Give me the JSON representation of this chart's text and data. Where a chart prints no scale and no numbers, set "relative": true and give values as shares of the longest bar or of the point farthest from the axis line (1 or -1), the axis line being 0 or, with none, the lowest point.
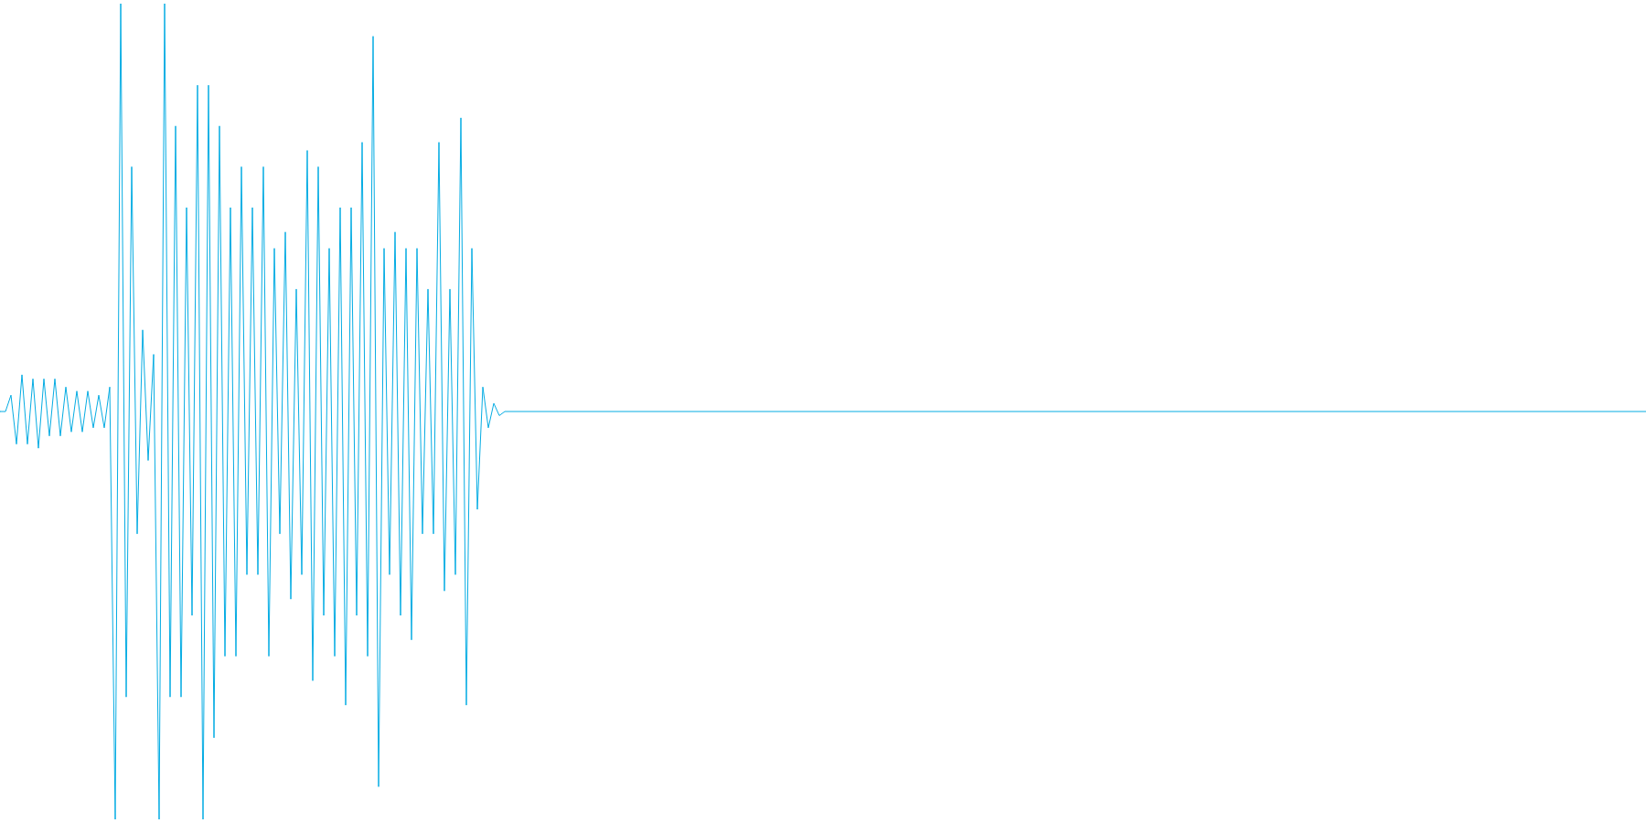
{
  "chart_data": {
    "type": "line",
    "relative": true,
    "categories": [
      null,
      null,
      null,
      null,
      null,
      null,
      null,
      null,
      null,
      null,
      null,
      null,
      null,
      null,
      null,
      null,
      null,
      null,
      null,
      null,
      null,
      null,
      null,
      null,
      null,
      null,
      null,
      null,
      null,
      null,
      null,
      null,
      null,
      null,
      null,
      null,
      null,
      null,
      null,
      null,
      null,
      null,
      null,
      null,
      null,
      null,
      null,
      null,
      null,
      null,
      null,
      null,
      null,
      null,
      null,
      null,
      null,
      null,
      null,
      null,
      null,
      null,
      null,
      null,
      null,
      null,
      null,
      null,
      null,
      null,
      null,
      null,
      null,
      null,
      null,
      null,
      null,
      null,
      null,
      null,
      null,
      null,
      null,
      null,
      null,
      null,
      null,
      null,
      null,
      null,
      null,
      null,
      null,
      null,
      null,
      null,
      null,
      null,
      null,
      null,
      null,
      null,
      null,
      null,
      null,
      null,
      null,
      null,
      null,
      null,
      null,
      null,
      null,
      null,
      null,
      null,
      null,
      null,
      null,
      null,
      null,
      null,
      null,
      null,
      null,
      null,
      null,
      null,
      null,
      null,
      null,
      null,
      null,
      null,
      null,
      null,
      null,
      null,
      null,
      null,
      null,
      null,
      null,
      null,
      null,
      null,
      null,
      null,
      null,
      null,
      null,
      null,
      null,
      null,
      null,
      null,
      null,
      null,
      null,
      null,
      null,
      null,
      null,
      null,
      null,
      null,
      null,
      null,
      null,
      null,
      null,
      null,
      null,
      null,
      null,
      null,
      null,
      null,
      null,
      null,
      null,
      null,
      null,
      null,
      null,
      null,
      null,
      null,
      null,
      null,
      null,
      null,
      null,
      null,
      null,
      null,
      null,
      null,
      null,
      null,
      null,
      null,
      null,
      null,
      null,
      null,
      null,
      null,
      null,
      null,
      null,
      null,
      null,
      null,
      null,
      null,
      null,
      null,
      null,
      null,
      null,
      null,
      null,
      null,
      null,
      null,
      null,
      null,
      null,
      null,
      null,
      null,
      null,
      null,
      null,
      null,
      null,
      null,
      null,
      null,
      null,
      null,
      null,
      null,
      null,
      null,
      null,
      null,
      null,
      null,
      null,
      null,
      null,
      null,
      null,
      null,
      null,
      null,
      null,
      null,
      null,
      null,
      null,
      null,
      null,
      null,
      null,
      null,
      null,
      null,
      null,
      null,
      null,
      null,
      null,
      null,
      null,
      null,
      null,
      null,
      null,
      null,
      null,
      null,
      null,
      null,
      null,
      null,
      null,
      null,
      null,
      null,
      null,
      null,
      null,
      null,
      null,
      null,
      null,
      null,
      null
    ],
    "series": [
      {
        "color": "#05ace3",
        "values": [
          0.5,
          0.5,
          0.52,
          0.46,
          0.545,
          0.46,
          0.54,
          0.455,
          0.54,
          0.47,
          0.54,
          0.47,
          0.53,
          0.475,
          0.525,
          0.475,
          0.525,
          0.48,
          0.52,
          0.48,
          0.53,
          0,
          1,
          0.15,
          0.8,
          0.35,
          0.6,
          0.44,
          0.57,
          0,
          1,
          0.15,
          0.85,
          0.15,
          0.75,
          0.25,
          0.9,
          0,
          0.9,
          0.1,
          0.85,
          0.2,
          0.75,
          0.2,
          0.8,
          0.3,
          0.75,
          0.3,
          0.8,
          0.2,
          0.7,
          0.35,
          0.72,
          0.27,
          0.65,
          0.3,
          0.82,
          0.17,
          0.8,
          0.25,
          0.7,
          0.2,
          0.75,
          0.14,
          0.75,
          0.25,
          0.83,
          0.2,
          0.96,
          0.04,
          0.7,
          0.3,
          0.72,
          0.25,
          0.7,
          0.22,
          0.7,
          0.35,
          0.65,
          0.35,
          0.83,
          0.28,
          0.65,
          0.3,
          0.86,
          0.14,
          0.7,
          0.38,
          0.53,
          0.48,
          0.51,
          0.495,
          0.5,
          0.5,
          0.5,
          0.5,
          0.5,
          0.5,
          0.5,
          0.5,
          0.5,
          0.5,
          0.5,
          0.5,
          0.5,
          0.5,
          0.5,
          0.5,
          0.5,
          0.5,
          0.5,
          0.5,
          0.5,
          0.5,
          0.5,
          0.5,
          0.5,
          0.5,
          0.5,
          0.5,
          0.5,
          0.5,
          0.5,
          0.5,
          0.5,
          0.5,
          0.5,
          0.5,
          0.5,
          0.5,
          0.5,
          0.5,
          0.5,
          0.5,
          0.5,
          0.5,
          0.5,
          0.5,
          0.5,
          0.5,
          0.5,
          0.5,
          0.5,
          0.5,
          0.5,
          0.5,
          0.5,
          0.5,
          0.5,
          0.5,
          0.5,
          0.5,
          0.5,
          0.5,
          0.5,
          0.5,
          0.5,
          0.5,
          0.5,
          0.5,
          0.5,
          0.5,
          0.5,
          0.5,
          0.5,
          0.5,
          0.5,
          0.5,
          0.5,
          0.5,
          0.5,
          0.5,
          0.5,
          0.5,
          0.5,
          0.5,
          0.5,
          0.5,
          0.5,
          0.5,
          0.5,
          0.5,
          0.5,
          0.5,
          0.5,
          0.5,
          0.5,
          0.5,
          0.5,
          0.5,
          0.5,
          0.5,
          0.5,
          0.5,
          0.5,
          0.5,
          0.5,
          0.5,
          0.5,
          0.5,
          0.5,
          0.5,
          0.5,
          0.5,
          0.5,
          0.5,
          0.5,
          0.5,
          0.5,
          0.5,
          0.5,
          0.5,
          0.5,
          0.5,
          0.5,
          0.5,
          0.5,
          0.5,
          0.5,
          0.5,
          0.5,
          0.5,
          0.5,
          0.5,
          0.5,
          0.5,
          0.5,
          0.5,
          0.5,
          0.5,
          0.5,
          0.5,
          0.5,
          0.5,
          0.5,
          0.5,
          0.5,
          0.5,
          0.5,
          0.5,
          0.5,
          0.5,
          0.5,
          0.5,
          0.5,
          0.5,
          0.5,
          0.5,
          0.5,
          0.5,
          0.5,
          0.5,
          0.5,
          0.5,
          0.5,
          0.5,
          0.5,
          0.5,
          0.5,
          0.5,
          0.5,
          0.5,
          0.5,
          0.5,
          0.5,
          0.5,
          0.5,
          0.5,
          0.5,
          0.5,
          0.5,
          0.5,
          0.5,
          0.5,
          0.5,
          0.5,
          0.5,
          0.5,
          0.5,
          0.5,
          0.5,
          0.5,
          0.5,
          0.5,
          0.5,
          0.5,
          0.5,
          0.5,
          0.5,
          0.5,
          0.5,
          0.5,
          0.5,
          0.5,
          0.5,
          0.5,
          0.5,
          0.5,
          0.5,
          0.5,
          0.5
        ]
      }
    ]
  }
}
